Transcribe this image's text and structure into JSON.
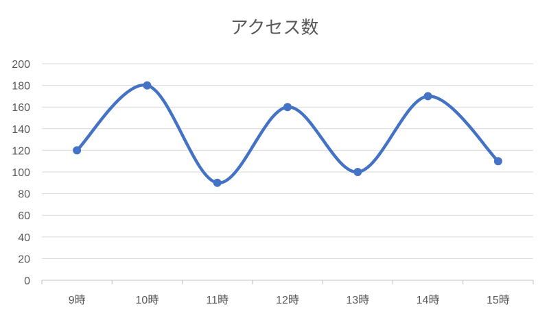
{
  "chart_data": {
    "type": "line",
    "title": "アクセス数",
    "categories": [
      "9時",
      "10時",
      "11時",
      "12時",
      "13時",
      "14時",
      "15時"
    ],
    "series": [
      {
        "values": [
          120,
          180,
          90,
          160,
          100,
          170,
          110
        ],
        "color": "#4472C4"
      }
    ],
    "ylim": [
      0,
      200
    ],
    "yticks": [
      0,
      20,
      40,
      60,
      80,
      100,
      120,
      140,
      160,
      180,
      200
    ],
    "smooth": true,
    "markers": true,
    "grid": true,
    "legend": "none",
    "xlabel": "",
    "ylabel": ""
  }
}
